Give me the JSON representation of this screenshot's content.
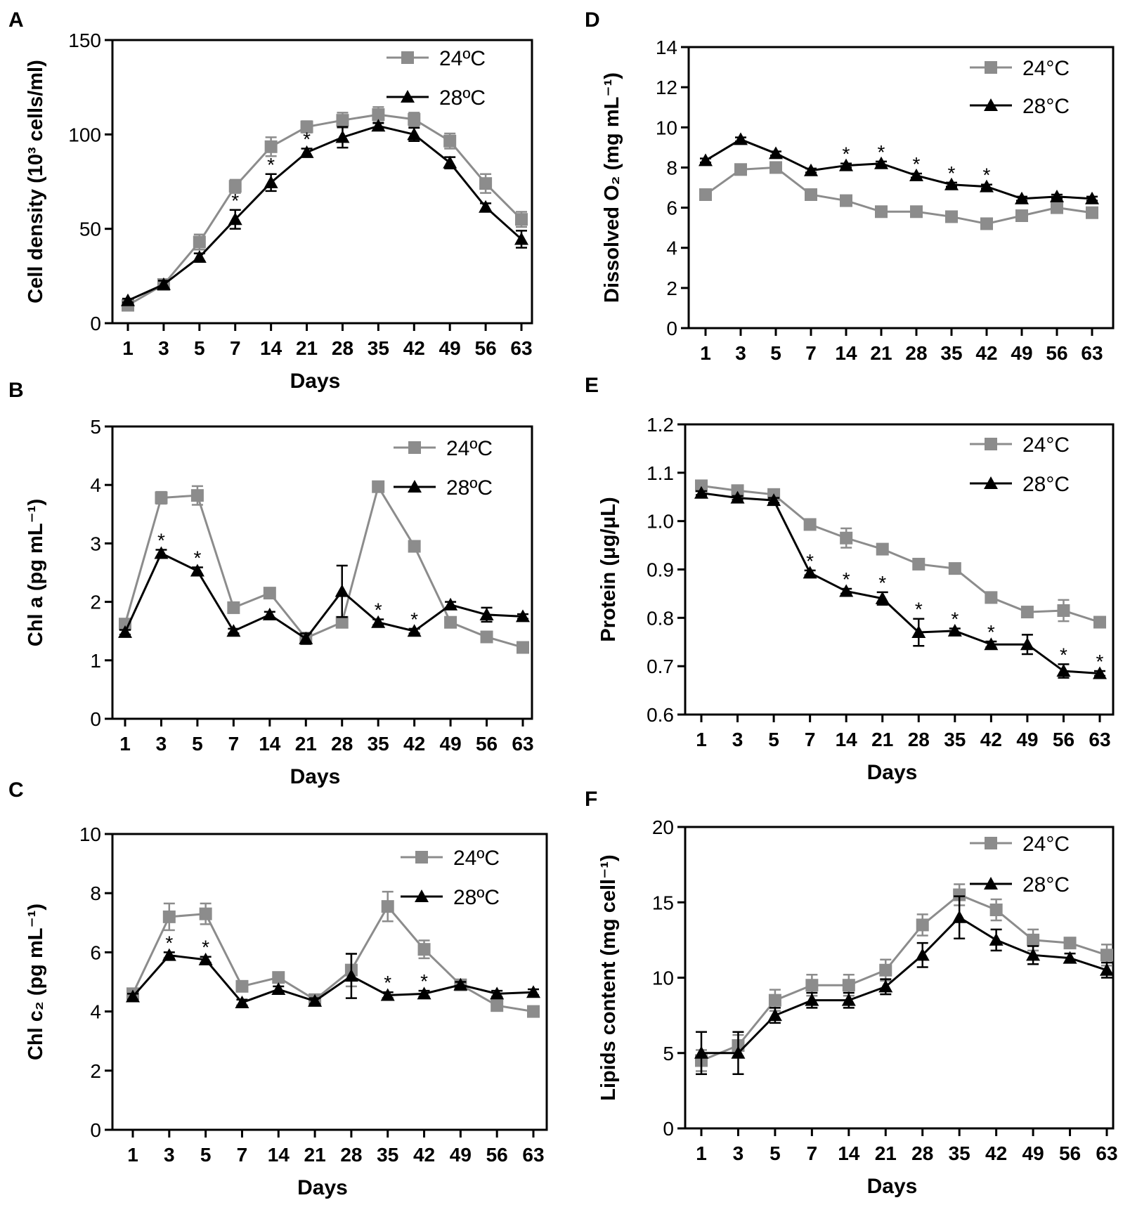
{
  "figure": {
    "x_label": "Days"
  },
  "colors": {
    "series_24": "#8c8c8c",
    "series_28": "#000000",
    "axis": "#000000"
  },
  "chart_data": [
    {
      "panel": "A",
      "type": "line",
      "categories": [
        "1",
        "3",
        "5",
        "7",
        "14",
        "21",
        "28",
        "35",
        "42",
        "49",
        "56",
        "63"
      ],
      "xlabel": "Days",
      "ylabel": "Cell density (10³ cells/ml)",
      "ylim": [
        0,
        150
      ],
      "yticks": [
        0,
        50,
        100,
        150
      ],
      "series": [
        {
          "name": "24ºC",
          "marker": "square",
          "values": [
            9.5,
            20.5,
            43,
            72.5,
            93.5,
            104,
            107.5,
            110.5,
            108,
            96.5,
            74,
            55
          ],
          "errors": [
            1.5,
            2,
            4,
            3.5,
            5,
            3,
            4,
            4,
            3.5,
            4,
            5,
            4
          ]
        },
        {
          "name": "28ºC",
          "marker": "triangle",
          "values": [
            12,
            20.5,
            35,
            55,
            74.5,
            90.5,
            98.5,
            104.5,
            100,
            85,
            61.5,
            44.5
          ],
          "errors": [
            1,
            2,
            2,
            5,
            4.5,
            2,
            5.5,
            1.5,
            3.5,
            3,
            2,
            4.5
          ]
        }
      ],
      "asterisks": [
        "7",
        "14",
        "21"
      ]
    },
    {
      "panel": "B",
      "type": "line",
      "categories": [
        "1",
        "3",
        "5",
        "7",
        "14",
        "21",
        "28",
        "35",
        "42",
        "49",
        "56",
        "63"
      ],
      "xlabel": "Days",
      "ylabel": "Chl a (pg mL⁻¹)",
      "ylim": [
        0,
        5
      ],
      "yticks": [
        0,
        1,
        2,
        3,
        4,
        5
      ],
      "series": [
        {
          "name": "24ºC",
          "marker": "square",
          "values": [
            1.62,
            3.78,
            3.82,
            1.9,
            2.15,
            1.38,
            1.65,
            3.97,
            2.95,
            1.65,
            1.4,
            1.22
          ],
          "errors": [
            0.05,
            0.1,
            0.16,
            0.05,
            0.05,
            0.05,
            0.06,
            0.04,
            0.05,
            0.05,
            0.09,
            0.04
          ]
        },
        {
          "name": "28ºC",
          "marker": "triangle",
          "values": [
            1.48,
            2.83,
            2.53,
            1.5,
            1.78,
            1.37,
            2.18,
            1.65,
            1.5,
            1.95,
            1.78,
            1.75
          ],
          "errors": [
            0.04,
            0.06,
            0.06,
            0.04,
            0.05,
            0.09,
            0.44,
            0.05,
            0.04,
            0.05,
            0.12,
            0.04
          ]
        }
      ],
      "asterisks": [
        "3",
        "5",
        "35",
        "42"
      ]
    },
    {
      "panel": "C",
      "type": "line",
      "categories": [
        "1",
        "3",
        "5",
        "7",
        "14",
        "21",
        "28",
        "35",
        "42",
        "49",
        "56",
        "63"
      ],
      "xlabel": "Days",
      "ylabel": "Chl c₂ (pg mL⁻¹)",
      "ylim": [
        0,
        10
      ],
      "yticks": [
        0,
        2,
        4,
        6,
        8,
        10
      ],
      "series": [
        {
          "name": "24ºC",
          "marker": "square",
          "values": [
            4.6,
            7.2,
            7.3,
            4.85,
            5.15,
            4.4,
            5.4,
            7.55,
            6.1,
            4.9,
            4.2,
            4.0
          ],
          "errors": [
            0.1,
            0.45,
            0.35,
            0.1,
            0.1,
            0.1,
            0.55,
            0.5,
            0.3,
            0.1,
            0.1,
            0.1
          ]
        },
        {
          "name": "28ºC",
          "marker": "triangle",
          "values": [
            4.5,
            5.9,
            5.75,
            4.3,
            4.75,
            4.35,
            5.2,
            4.55,
            4.6,
            4.9,
            4.6,
            4.65
          ],
          "errors": [
            0.1,
            0.1,
            0.1,
            0.1,
            0.1,
            0.1,
            0.75,
            0.1,
            0.1,
            0.1,
            0.1,
            0.1
          ]
        }
      ],
      "asterisks": [
        "3",
        "5",
        "35",
        "42"
      ]
    },
    {
      "panel": "D",
      "type": "line",
      "categories": [
        "1",
        "3",
        "5",
        "7",
        "14",
        "21",
        "28",
        "35",
        "42",
        "49",
        "56",
        "63"
      ],
      "xlabel": "",
      "ylabel": "Dissolved O₂ (mg mL⁻¹)",
      "ylim": [
        0,
        14
      ],
      "yticks": [
        0,
        2,
        4,
        6,
        8,
        10,
        12,
        14
      ],
      "series": [
        {
          "name": "24°C",
          "marker": "square",
          "values": [
            6.65,
            7.9,
            8.0,
            6.65,
            6.35,
            5.8,
            5.8,
            5.55,
            5.2,
            5.6,
            6.0,
            5.75
          ],
          "errors": [
            0.15,
            0.1,
            0.1,
            0.1,
            0.1,
            0.1,
            0.1,
            0.1,
            0.1,
            0.1,
            0.1,
            0.1
          ]
        },
        {
          "name": "28°C",
          "marker": "triangle",
          "values": [
            8.35,
            9.4,
            8.7,
            7.85,
            8.1,
            8.2,
            7.6,
            7.15,
            7.05,
            6.45,
            6.55,
            6.45
          ],
          "errors": [
            0.1,
            0.1,
            0.1,
            0.1,
            0.1,
            0.1,
            0.1,
            0.1,
            0.1,
            0.1,
            0.1,
            0.1
          ]
        }
      ],
      "asterisks": [
        "14",
        "21",
        "28",
        "35",
        "42"
      ]
    },
    {
      "panel": "E",
      "type": "line",
      "categories": [
        "1",
        "3",
        "5",
        "7",
        "14",
        "21",
        "28",
        "35",
        "42",
        "49",
        "56",
        "63"
      ],
      "xlabel": "Days",
      "ylabel": "Protein (μg/μL)",
      "ylim": [
        0.6,
        1.2
      ],
      "yticks": [
        0.6,
        0.7,
        0.8,
        0.9,
        1.0,
        1.1,
        1.2
      ],
      "tick_labels": [
        "0.6",
        "0.7",
        "0.8",
        "0.9",
        "1.0",
        "1.1",
        "1.2"
      ],
      "series": [
        {
          "name": "24°C",
          "marker": "square",
          "values": [
            1.073,
            1.063,
            1.055,
            0.993,
            0.965,
            0.942,
            0.911,
            0.902,
            0.842,
            0.812,
            0.815,
            0.791
          ],
          "errors": [
            0.005,
            0.005,
            0.006,
            0.005,
            0.02,
            0.006,
            0.006,
            0.005,
            0.006,
            0.006,
            0.022,
            0.006
          ]
        },
        {
          "name": "28°C",
          "marker": "triangle",
          "values": [
            1.058,
            1.048,
            1.043,
            0.893,
            0.855,
            0.84,
            0.77,
            0.773,
            0.745,
            0.745,
            0.69,
            0.685
          ],
          "errors": [
            0.004,
            0.004,
            0.005,
            0.005,
            0.005,
            0.013,
            0.028,
            0.005,
            0.006,
            0.02,
            0.014,
            0.005
          ]
        }
      ],
      "asterisks": [
        "7",
        "14",
        "21",
        "28",
        "35",
        "42",
        "56",
        "63"
      ]
    },
    {
      "panel": "F",
      "type": "line",
      "categories": [
        "1",
        "3",
        "5",
        "7",
        "14",
        "21",
        "28",
        "35",
        "42",
        "49",
        "56",
        "63"
      ],
      "xlabel": "Days",
      "ylabel": "Lipids content (mg cell⁻¹)",
      "ylim": [
        0,
        20
      ],
      "yticks": [
        0,
        5,
        10,
        15,
        20
      ],
      "series": [
        {
          "name": "24°C",
          "marker": "square",
          "values": [
            4.5,
            5.5,
            8.5,
            9.5,
            9.5,
            10.5,
            13.5,
            15.5,
            14.5,
            12.5,
            12.3,
            11.5
          ],
          "errors": [
            0.7,
            0.7,
            0.7,
            0.7,
            0.7,
            0.7,
            0.7,
            0.7,
            0.7,
            0.7,
            0.3,
            0.7
          ]
        },
        {
          "name": "28°C",
          "marker": "triangle",
          "values": [
            5.0,
            5.0,
            7.5,
            8.5,
            8.5,
            9.4,
            11.5,
            14.0,
            12.5,
            11.5,
            11.3,
            10.5
          ],
          "errors": [
            1.4,
            1.4,
            0.5,
            0.5,
            0.5,
            0.5,
            0.8,
            1.4,
            0.7,
            0.6,
            0.3,
            0.5
          ]
        }
      ],
      "asterisks": []
    }
  ]
}
